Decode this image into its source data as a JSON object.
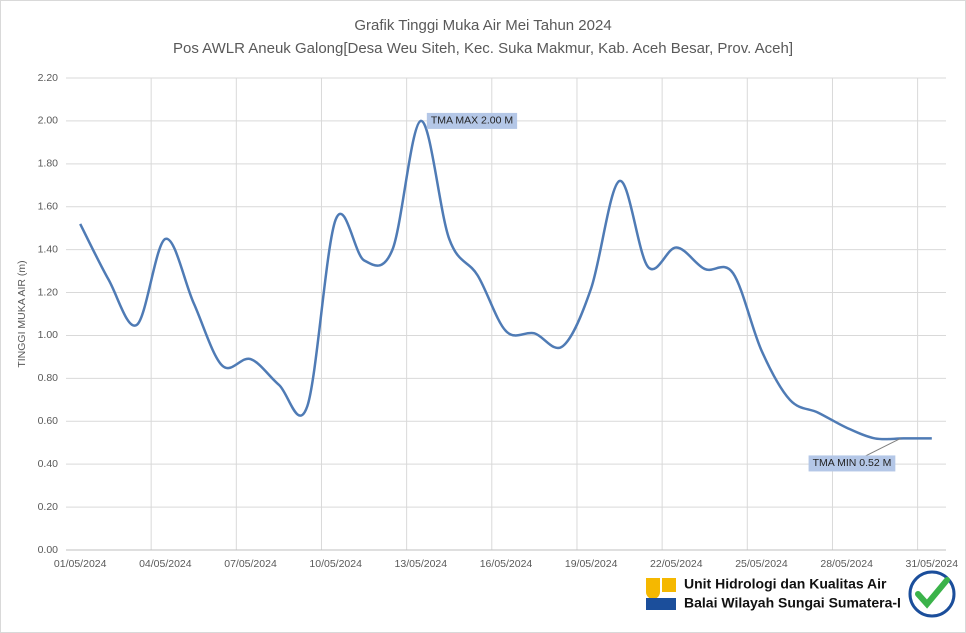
{
  "chart_data": {
    "type": "line",
    "title": "Grafik Tinggi Muka Air Mei Tahun 2024",
    "subtitle": "Pos AWLR Aneuk Galong[Desa Weu Siteh, Kec. Suka Makmur, Kab. Aceh Besar, Prov. Aceh]",
    "y_label": "TINGGI MUKA AIR (m)",
    "categories": [
      "01/05/2024",
      null,
      null,
      "04/05/2024",
      null,
      null,
      "07/05/2024",
      null,
      null,
      "10/05/2024",
      null,
      null,
      "13/05/2024",
      null,
      null,
      "16/05/2024",
      null,
      null,
      "19/05/2024",
      null,
      null,
      "22/05/2024",
      null,
      null,
      "25/05/2024",
      null,
      null,
      "28/05/2024",
      null,
      null,
      "31/05/2024"
    ],
    "series": [
      {
        "name": "TMA",
        "color": "#4f7bb5",
        "values": [
          1.52,
          1.26,
          1.05,
          1.45,
          1.15,
          0.86,
          0.89,
          0.77,
          0.67,
          1.54,
          1.35,
          1.4,
          2.0,
          1.45,
          1.28,
          1.02,
          1.01,
          0.95,
          1.22,
          1.72,
          1.32,
          1.41,
          1.31,
          1.29,
          0.93,
          0.7,
          0.64,
          0.57,
          0.52,
          0.52,
          0.52
        ]
      }
    ],
    "ylim": [
      0,
      2.2
    ],
    "yticks": [
      {
        "value": 0,
        "label": "0.00"
      },
      {
        "value": 0.2,
        "label": "0.20"
      },
      {
        "value": 0.4,
        "label": "0.40"
      },
      {
        "value": 0.6,
        "label": "0.60"
      },
      {
        "value": 0.8,
        "label": "0.80"
      },
      {
        "value": 1.0,
        "label": "1.00"
      },
      {
        "value": 1.2,
        "label": "1.20"
      },
      {
        "value": 1.4,
        "label": "1.40"
      },
      {
        "value": 1.6,
        "label": "1.60"
      },
      {
        "value": 1.8,
        "label": "1.80"
      },
      {
        "value": 2.0,
        "label": "2.00"
      },
      {
        "value": 2.2,
        "label": "2.20"
      }
    ],
    "grid": true,
    "annotations": [
      {
        "text": "TMA MAX  2.00  M"
      },
      {
        "text": "TMA MIN  0.52  M"
      }
    ]
  },
  "footer": {
    "line1": "Unit Hidrologi dan Kualitas Air",
    "line2": "Balai Wilayah Sungai Sumatera-I"
  }
}
